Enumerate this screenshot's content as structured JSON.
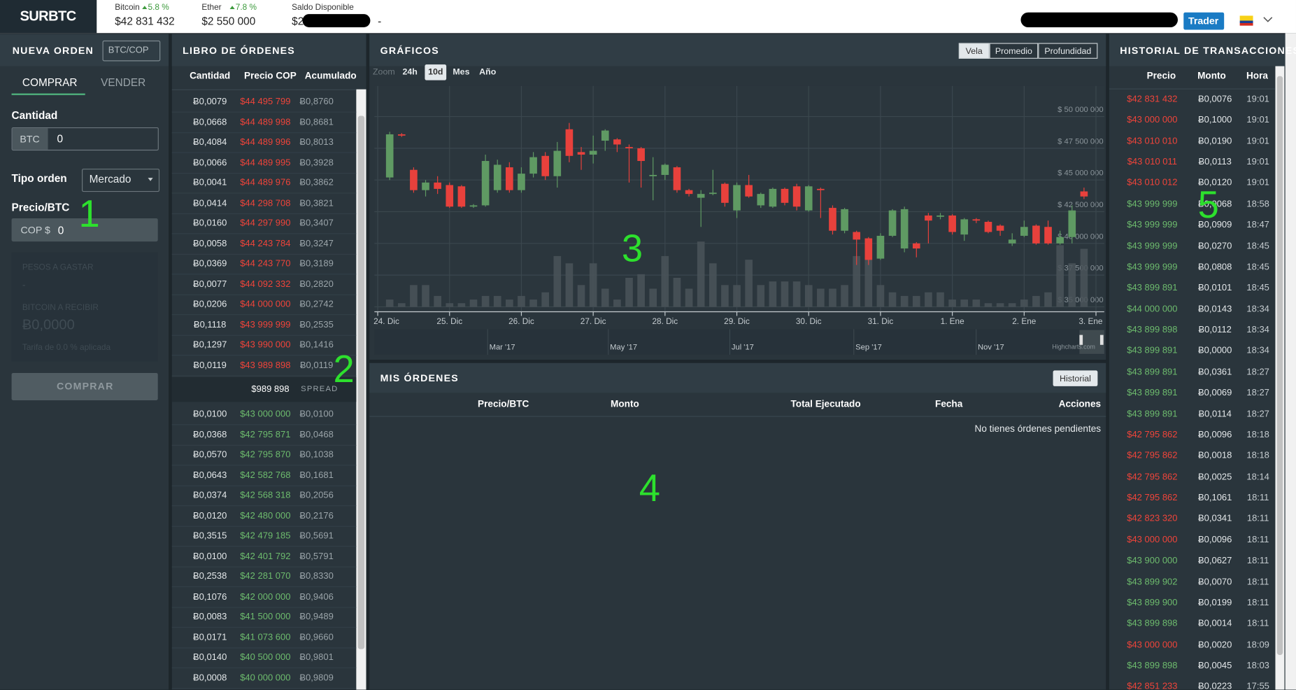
{
  "header": {
    "logo": "SURBTC",
    "tickers": [
      {
        "name": "Bitcoin",
        "change": "5.8 %",
        "price": "$42 831 432"
      },
      {
        "name": "Ether",
        "change": "7.8 %",
        "price": "$2 550 000"
      }
    ],
    "balance_label": "Saldo Disponible",
    "balance": "$2",
    "balance_extra": "-",
    "trader_button": "Trader"
  },
  "order_form": {
    "title": "NUEVA ORDEN",
    "market": "BTC/COP",
    "tabs": [
      "COMPRAR",
      "VENDER"
    ],
    "quantity_label": "Cantidad",
    "quantity_unit": "BTC",
    "quantity_value": "0",
    "order_type_label": "Tipo orden",
    "order_type": "Mercado",
    "price_label": "Precio/BTC",
    "price_unit": "COP $",
    "price_value": "0",
    "summary": [
      "PESOS A GASTAR",
      "-",
      "BITCOIN A RECIBIR",
      "Ƀ0,0000",
      "Tarifa de 0.0 % aplicada"
    ],
    "submit": "COMPRAR",
    "marker": "1"
  },
  "order_book": {
    "title": "LIBRO DE ÓRDENES",
    "columns": [
      "Cantidad",
      "Precio COP",
      "Acumulado"
    ],
    "asks": [
      [
        "Ƀ0,0079",
        "$44 495 799",
        "Ƀ0,8760"
      ],
      [
        "Ƀ0,0668",
        "$44 489 998",
        "Ƀ0,8681"
      ],
      [
        "Ƀ0,4084",
        "$44 489 996",
        "Ƀ0,8013"
      ],
      [
        "Ƀ0,0066",
        "$44 489 995",
        "Ƀ0,3928"
      ],
      [
        "Ƀ0,0041",
        "$44 489 976",
        "Ƀ0,3862"
      ],
      [
        "Ƀ0,0414",
        "$44 298 708",
        "Ƀ0,3821"
      ],
      [
        "Ƀ0,0160",
        "$44 297 990",
        "Ƀ0,3407"
      ],
      [
        "Ƀ0,0058",
        "$44 243 784",
        "Ƀ0,3247"
      ],
      [
        "Ƀ0,0369",
        "$44 243 770",
        "Ƀ0,3189"
      ],
      [
        "Ƀ0,0077",
        "$44 092 332",
        "Ƀ0,2820"
      ],
      [
        "Ƀ0,0206",
        "$44 000 000",
        "Ƀ0,2742"
      ],
      [
        "Ƀ0,1118",
        "$43 999 999",
        "Ƀ0,2535"
      ],
      [
        "Ƀ0,1297",
        "$43 990 000",
        "Ƀ0,1416"
      ],
      [
        "Ƀ0,0119",
        "$43 989 898",
        "Ƀ0,0119"
      ]
    ],
    "spread_price": "$989 898",
    "spread_label": "SPREAD",
    "bids": [
      [
        "Ƀ0,0100",
        "$43 000 000",
        "Ƀ0,0100"
      ],
      [
        "Ƀ0,0368",
        "$42 795 871",
        "Ƀ0,0468"
      ],
      [
        "Ƀ0,0570",
        "$42 795 870",
        "Ƀ0,1038"
      ],
      [
        "Ƀ0,0643",
        "$42 582 768",
        "Ƀ0,1681"
      ],
      [
        "Ƀ0,0374",
        "$42 568 318",
        "Ƀ0,2056"
      ],
      [
        "Ƀ0,0120",
        "$42 480 000",
        "Ƀ0,2176"
      ],
      [
        "Ƀ0,3515",
        "$42 479 185",
        "Ƀ0,5691"
      ],
      [
        "Ƀ0,0100",
        "$42 401 792",
        "Ƀ0,5791"
      ],
      [
        "Ƀ0,2538",
        "$42 281 070",
        "Ƀ0,8330"
      ],
      [
        "Ƀ0,1076",
        "$42 000 000",
        "Ƀ0,9406"
      ],
      [
        "Ƀ0,0083",
        "$41 500 000",
        "Ƀ0,9489"
      ],
      [
        "Ƀ0,0171",
        "$41 073 600",
        "Ƀ0,9660"
      ],
      [
        "Ƀ0,0140",
        "$40 500 000",
        "Ƀ0,9801"
      ],
      [
        "Ƀ0,0008",
        "$40 000 000",
        "Ƀ0,9809"
      ]
    ],
    "ask_color": "#f0443a",
    "bid_color": "#6dbb6d",
    "marker": "2"
  },
  "charts_panel": {
    "title": "GRÁFICOS",
    "view_buttons": [
      "Vela",
      "Promedio",
      "Profundidad"
    ],
    "selected_view": 0,
    "zoom_label": "Zoom",
    "zoom_options": [
      "24h",
      "10d",
      "Mes",
      "Año"
    ],
    "selected_zoom": 1,
    "navigator_labels": [
      "Mar '17",
      "May '17",
      "Jul '17",
      "Sep '17",
      "Nov '17"
    ],
    "credit": "Highcharts.com",
    "marker": "3"
  },
  "chart_data": {
    "type": "candlestick",
    "x": [
      4,
      8,
      12,
      16,
      20,
      24,
      28,
      32,
      36,
      40,
      44,
      48,
      52,
      56,
      60,
      64,
      68,
      72,
      76,
      80,
      84,
      88,
      92,
      96,
      100,
      104,
      108,
      112,
      116,
      120,
      124,
      128,
      132,
      136,
      140,
      144,
      148,
      152,
      156,
      160,
      164,
      168,
      172,
      176,
      180,
      184,
      188,
      192,
      196,
      200,
      204,
      208,
      212,
      216,
      220,
      224,
      228,
      232,
      236
    ],
    "open": [
      45200000,
      48600000,
      45800000,
      44200000,
      44800000,
      44600000,
      44500000,
      42900000,
      43000000,
      44200000,
      46000000,
      44200000,
      45500000,
      46900000,
      45300000,
      49000000,
      47200000,
      47000000,
      48100000,
      48200000,
      47600000,
      47500000,
      45300000,
      45400000,
      46000000,
      44200000,
      43600000,
      43900000,
      44700000,
      42600000,
      44600000,
      43000000,
      42900000,
      44300000,
      44500000,
      42600000,
      44300000,
      42800000,
      41000000,
      40900000,
      40400000,
      38800000,
      40600000,
      39600000,
      40000000,
      42200000,
      42100000,
      42200000,
      40700000,
      41900000,
      41700000,
      41400000,
      40000000,
      40600000,
      41400000,
      41300000,
      40000000,
      40500000,
      44100000
    ],
    "high": [
      48800000,
      48700000,
      46000000,
      45000000,
      45300000,
      44800000,
      44600000,
      43100000,
      47000000,
      46600000,
      46400000,
      46000000,
      47200000,
      47200000,
      48000000,
      49500000,
      47600000,
      48500000,
      49000000,
      48300000,
      47800000,
      47600000,
      46800000,
      46300000,
      46100000,
      44300000,
      44200000,
      45800000,
      44800000,
      44800000,
      45400000,
      44000000,
      44400000,
      44400000,
      44700000,
      44600000,
      44400000,
      43000000,
      42800000,
      41000000,
      40500000,
      40800000,
      42700000,
      42900000,
      40100000,
      42400000,
      42400000,
      42300000,
      42000000,
      42000000,
      41800000,
      41500000,
      40800000,
      41800000,
      41500000,
      41800000,
      41000000,
      43000000,
      44400000
    ],
    "low": [
      45000000,
      48400000,
      44000000,
      43700000,
      43900000,
      42800000,
      42800000,
      42800000,
      42900000,
      44000000,
      44000000,
      44000000,
      45200000,
      45000000,
      44400000,
      46400000,
      45800000,
      46300000,
      47300000,
      47200000,
      44800000,
      44400000,
      43400000,
      45000000,
      44000000,
      43700000,
      41300000,
      43800000,
      42900000,
      42000000,
      43600000,
      42800000,
      42800000,
      43000000,
      42600000,
      42500000,
      42000000,
      40700000,
      40800000,
      38300000,
      38300000,
      38700000,
      40500000,
      39300000,
      38900000,
      40000000,
      41900000,
      40700000,
      40200000,
      41600000,
      40800000,
      40600000,
      39800000,
      40500000,
      39900000,
      39900000,
      39900000,
      40000000,
      43500000
    ],
    "close": [
      48600000,
      48500000,
      44200000,
      44800000,
      44300000,
      42900000,
      42900000,
      43000000,
      46500000,
      46200000,
      44200000,
      45500000,
      46800000,
      45300000,
      47300000,
      46900000,
      47000000,
      47300000,
      48900000,
      47800000,
      47500000,
      46500000,
      45400000,
      46200000,
      44200000,
      43900000,
      43900000,
      44000000,
      43200000,
      44600000,
      43700000,
      43900000,
      44300000,
      43200000,
      42900000,
      44500000,
      44200000,
      41000000,
      42700000,
      40300000,
      38700000,
      40600000,
      42600000,
      42700000,
      39600000,
      41800000,
      42200000,
      40900000,
      41900000,
      41800000,
      40900000,
      41000000,
      40300000,
      41300000,
      40000000,
      40000000,
      40500000,
      42600000,
      43700000
    ],
    "volume": [
      10,
      5,
      30,
      30,
      15,
      5,
      5,
      10,
      15,
      15,
      10,
      15,
      10,
      20,
      70,
      60,
      30,
      60,
      25,
      10,
      40,
      45,
      25,
      70,
      40,
      25,
      90,
      60,
      30,
      30,
      65,
      30,
      35,
      35,
      35,
      30,
      25,
      25,
      30,
      70,
      65,
      30,
      20,
      15,
      15,
      20,
      20,
      10,
      10,
      10,
      5,
      5,
      5,
      10,
      15,
      20,
      85,
      60,
      80
    ],
    "up_color": "#5f9a63",
    "down_color": "#e8413c",
    "volume_color": "#4a5459",
    "xlim": [
      0,
      240
    ],
    "xticks": [
      {
        "value": 0,
        "label": "24. Dic"
      },
      {
        "value": 24,
        "label": "25. Dic"
      },
      {
        "value": 48,
        "label": "26. Dic"
      },
      {
        "value": 72,
        "label": "27. Dic"
      },
      {
        "value": 96,
        "label": "28. Dic"
      },
      {
        "value": 120,
        "label": "29. Dic"
      },
      {
        "value": 144,
        "label": "30. Dic"
      },
      {
        "value": 168,
        "label": "31. Dic"
      },
      {
        "value": 192,
        "label": "1. Ene"
      },
      {
        "value": 216,
        "label": "2. Ene"
      },
      {
        "value": 240,
        "label": "3. Ene"
      }
    ],
    "ylim": [
      35000000,
      52150000
    ],
    "yticks": [
      {
        "value": 35000000,
        "label": "$ 35 000 000"
      },
      {
        "value": 37500000,
        "label": "$ 37 500 000"
      },
      {
        "value": 40000000,
        "label": "$ 40 000 000"
      },
      {
        "value": 42500000,
        "label": "$ 42 500 000"
      },
      {
        "value": 45000000,
        "label": "$ 45 000 000"
      },
      {
        "value": 47500000,
        "label": "$ 47 500 000"
      },
      {
        "value": 50000000,
        "label": "$ 50 000 000"
      }
    ],
    "y2lim": [
      0,
      300
    ],
    "grid": true
  },
  "my_orders": {
    "title": "MIS ÓRDENES",
    "history_button": "Historial",
    "columns": [
      "Precio/BTC",
      "Monto",
      "Total Ejecutado",
      "Fecha",
      "Acciones"
    ],
    "empty": "No tienes órdenes pendientes",
    "marker": "4"
  },
  "trade_history": {
    "title": "HISTORIAL DE TRANSACCIONES",
    "columns": [
      "Precio",
      "Monto",
      "Hora"
    ],
    "rows": [
      {
        "price": "$42 831 432",
        "amount": "Ƀ0,0076",
        "time": "19:01",
        "color": "#f0443a"
      },
      {
        "price": "$43 000 000",
        "amount": "Ƀ0,1000",
        "time": "19:01",
        "color": "#f0443a"
      },
      {
        "price": "$43 010 010",
        "amount": "Ƀ0,0190",
        "time": "19:01",
        "color": "#f0443a"
      },
      {
        "price": "$43 010 011",
        "amount": "Ƀ0,0113",
        "time": "19:01",
        "color": "#f0443a"
      },
      {
        "price": "$43 010 012",
        "amount": "Ƀ0,0120",
        "time": "19:01",
        "color": "#f0443a"
      },
      {
        "price": "$43 999 999",
        "amount": "Ƀ0,0068",
        "time": "18:58",
        "color": "#6dbb6d"
      },
      {
        "price": "$43 999 999",
        "amount": "Ƀ0,0909",
        "time": "18:47",
        "color": "#6dbb6d"
      },
      {
        "price": "$43 999 999",
        "amount": "Ƀ0,0270",
        "time": "18:45",
        "color": "#6dbb6d"
      },
      {
        "price": "$43 999 999",
        "amount": "Ƀ0,0808",
        "time": "18:45",
        "color": "#6dbb6d"
      },
      {
        "price": "$43 899 891",
        "amount": "Ƀ0,0101",
        "time": "18:45",
        "color": "#6dbb6d"
      },
      {
        "price": "$44 000 000",
        "amount": "Ƀ0,0143",
        "time": "18:34",
        "color": "#6dbb6d"
      },
      {
        "price": "$43 899 898",
        "amount": "Ƀ0,0112",
        "time": "18:34",
        "color": "#6dbb6d"
      },
      {
        "price": "$43 899 891",
        "amount": "Ƀ0,0000",
        "time": "18:34",
        "color": "#6dbb6d"
      },
      {
        "price": "$43 899 891",
        "amount": "Ƀ0,0361",
        "time": "18:27",
        "color": "#6dbb6d"
      },
      {
        "price": "$43 899 891",
        "amount": "Ƀ0,0069",
        "time": "18:27",
        "color": "#6dbb6d"
      },
      {
        "price": "$43 899 891",
        "amount": "Ƀ0,0114",
        "time": "18:27",
        "color": "#6dbb6d"
      },
      {
        "price": "$42 795 862",
        "amount": "Ƀ0,0096",
        "time": "18:18",
        "color": "#f0443a"
      },
      {
        "price": "$42 795 862",
        "amount": "Ƀ0,0018",
        "time": "18:18",
        "color": "#f0443a"
      },
      {
        "price": "$42 795 862",
        "amount": "Ƀ0,0025",
        "time": "18:14",
        "color": "#f0443a"
      },
      {
        "price": "$42 795 862",
        "amount": "Ƀ0,1061",
        "time": "18:11",
        "color": "#f0443a"
      },
      {
        "price": "$42 823 320",
        "amount": "Ƀ0,0341",
        "time": "18:11",
        "color": "#f0443a"
      },
      {
        "price": "$43 000 000",
        "amount": "Ƀ0,0096",
        "time": "18:11",
        "color": "#f0443a"
      },
      {
        "price": "$43 900 000",
        "amount": "Ƀ0,0627",
        "time": "18:11",
        "color": "#6dbb6d"
      },
      {
        "price": "$43 899 902",
        "amount": "Ƀ0,0070",
        "time": "18:11",
        "color": "#6dbb6d"
      },
      {
        "price": "$43 899 900",
        "amount": "Ƀ0,0199",
        "time": "18:11",
        "color": "#6dbb6d"
      },
      {
        "price": "$43 899 898",
        "amount": "Ƀ0,0014",
        "time": "18:11",
        "color": "#6dbb6d"
      },
      {
        "price": "$43 000 000",
        "amount": "Ƀ0,0020",
        "time": "18:09",
        "color": "#f0443a"
      },
      {
        "price": "$43 899 898",
        "amount": "Ƀ0,0045",
        "time": "18:03",
        "color": "#6dbb6d"
      },
      {
        "price": "$42 851 233",
        "amount": "Ƀ0,0223",
        "time": "17:55",
        "color": "#f0443a"
      }
    ],
    "marker": "5"
  }
}
